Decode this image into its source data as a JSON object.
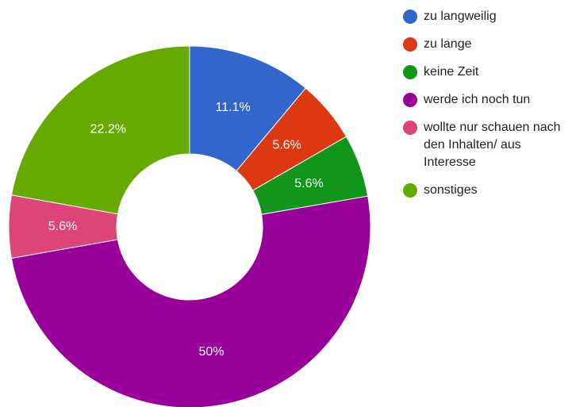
{
  "chart_data": {
    "type": "pie",
    "donut": true,
    "categories": [
      "zu langweilig",
      "zu lange",
      "keine Zeit",
      "werde ich noch tun",
      "wollte nur schauen nach den Inhalten/ aus Interesse",
      "sonstiges"
    ],
    "values": [
      11.1,
      5.6,
      5.6,
      50,
      5.6,
      22.2
    ],
    "value_labels": [
      "11.1%",
      "5.6%",
      "5.6%",
      "50%",
      "5.6%",
      "22.2%"
    ],
    "colors": [
      "#3366cc",
      "#dc3912",
      "#109618",
      "#990099",
      "#dd4477",
      "#66aa00"
    ],
    "legend": "right"
  }
}
